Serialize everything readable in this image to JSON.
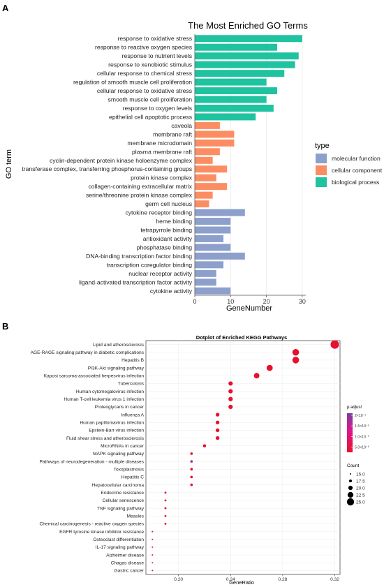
{
  "panel_labels": {
    "a": "A",
    "b": "B"
  },
  "chart_data": [
    {
      "type": "bar",
      "orientation": "horizontal",
      "title": "The Most Enriched GO Terms",
      "xlabel": "GeneNumber",
      "ylabel": "GO term",
      "xlim": [
        0,
        31
      ],
      "xticks": [
        0,
        10,
        20,
        30
      ],
      "legend_title": "type",
      "legend_position": "right",
      "grid": true,
      "series": [
        {
          "name": "molecular function",
          "color": "#8DA0CB",
          "categories": [
            "cytokine receptor binding",
            "heme binding",
            "tetrapyrrole binding",
            "antioxidant activity",
            "phosphatase binding",
            "DNA-binding transcription factor binding",
            "transcription coregulator binding",
            "nuclear receptor activity",
            "ligand-activated transcription factor activity",
            "cytokine activity"
          ],
          "values": [
            14,
            10,
            10,
            8,
            10,
            14,
            8,
            6,
            6,
            10
          ]
        },
        {
          "name": "cellular component",
          "color": "#FC8D62",
          "categories": [
            "caveola",
            "membrane raft",
            "membrane microdomain",
            "plasma membrane raft",
            "cyclin-dependent protein kinase holoenzyme complex",
            "transferase complex, transferring phosphorus-containing groups",
            "protein kinase complex",
            "collagen-containing extracellular matrix",
            "serine/threonine protein kinase complex",
            "germ cell nucleus"
          ],
          "values": [
            7,
            11,
            11,
            7,
            5,
            9,
            6,
            9,
            5,
            4
          ]
        },
        {
          "name": "biological process",
          "color": "#1FC3A0",
          "categories": [
            "response to oxidative stress",
            "response to reactive oxygen species",
            "response to nutrient levels",
            "response to xenobiotic stimulus",
            "cellular response to chemical stress",
            "regulation of smooth muscle cell proliferation",
            "cellular response to oxidative stress",
            "smooth muscle cell proliferation",
            "response to oxygen levels",
            "epithelial cell apoptotic process"
          ],
          "values": [
            30,
            23,
            29,
            28,
            25,
            20,
            23,
            20,
            22,
            17
          ]
        }
      ],
      "display_order": [
        "response to oxidative stress",
        "response to reactive oxygen species",
        "response to nutrient levels",
        "response to xenobiotic stimulus",
        "cellular response to chemical stress",
        "regulation of smooth muscle cell proliferation",
        "cellular response to oxidative stress",
        "smooth muscle cell proliferation",
        "response to oxygen levels",
        "epithelial cell apoptotic process",
        "caveola",
        "membrane raft",
        "membrane microdomain",
        "plasma membrane raft",
        "cyclin-dependent protein kinase holoenzyme complex",
        "transferase complex, transferring phosphorus-containing groups",
        "protein kinase complex",
        "collagen-containing extracellular matrix",
        "serine/threonine protein kinase complex",
        "germ cell nucleus",
        "cytokine receptor binding",
        "heme binding",
        "tetrapyrrole binding",
        "antioxidant activity",
        "phosphatase binding",
        "DNA-binding transcription factor binding",
        "transcription coregulator binding",
        "nuclear receptor activity",
        "ligand-activated transcription factor activity",
        "cytokine activity"
      ],
      "legend_order": [
        "molecular function",
        "cellular component",
        "biological process"
      ]
    },
    {
      "type": "scatter",
      "title": "Dotplot of Enriched KEGG Pathways",
      "xlabel": "GeneRatio",
      "ylabel": "",
      "xlim": [
        0.175,
        0.324
      ],
      "xticks": [
        0.2,
        0.24,
        0.28,
        0.32
      ],
      "xtick_labels": [
        "0.20",
        "0.24",
        "0.28",
        "0.32"
      ],
      "grid": true,
      "legend_position": "right",
      "color_legend": {
        "title": "p.adjust",
        "ticks": [
          2e-05,
          1.5e-05,
          1e-05,
          5e-06
        ],
        "tick_labels": [
          "2×10⁻⁵",
          "1.5×10⁻⁵",
          "1.0×10⁻⁵",
          "5.0×10⁻⁶"
        ],
        "low_color": "#E8112D",
        "high_color": "#7B3FA0"
      },
      "size_legend": {
        "title": "Count",
        "values": [
          15.0,
          17.5,
          20.0,
          22.5,
          25.0
        ],
        "labels": [
          "15.0",
          "17.5",
          "20.0",
          "22.5",
          "25.0"
        ]
      },
      "points": [
        {
          "pathway": "Lipid and atherosclerosis",
          "gene_ratio": 0.32,
          "count": 27,
          "color": "#E8112D"
        },
        {
          "pathway": "AGE-RAGE signaling pathway in diabetic complications",
          "gene_ratio": 0.29,
          "count": 24,
          "color": "#E8112D"
        },
        {
          "pathway": "Hepatitis B",
          "gene_ratio": 0.29,
          "count": 24,
          "color": "#E8112D"
        },
        {
          "pathway": "PI3K-Akt signaling pathway",
          "gene_ratio": 0.27,
          "count": 23,
          "color": "#E8112D"
        },
        {
          "pathway": "Kaposi sarcoma-associated herpesvirus infection",
          "gene_ratio": 0.26,
          "count": 22,
          "color": "#E8112D"
        },
        {
          "pathway": "Tuberculosis",
          "gene_ratio": 0.24,
          "count": 20,
          "color": "#E8112D"
        },
        {
          "pathway": "Human cytomegalovirus infection",
          "gene_ratio": 0.24,
          "count": 20,
          "color": "#E8112D"
        },
        {
          "pathway": "Human T-cell leukemia virus 1 infection",
          "gene_ratio": 0.24,
          "count": 20,
          "color": "#E8112D"
        },
        {
          "pathway": "Proteoglycans in cancer",
          "gene_ratio": 0.24,
          "count": 20,
          "color": "#E8112D"
        },
        {
          "pathway": "Influenza A",
          "gene_ratio": 0.23,
          "count": 19,
          "color": "#E8112D"
        },
        {
          "pathway": "Human papillomavirus infection",
          "gene_ratio": 0.23,
          "count": 19,
          "color": "#E8112D"
        },
        {
          "pathway": "Epstein-Barr virus infection",
          "gene_ratio": 0.23,
          "count": 19,
          "color": "#E8112D"
        },
        {
          "pathway": "Fluid shear stress and atherosclerosis",
          "gene_ratio": 0.23,
          "count": 19,
          "color": "#E8112D"
        },
        {
          "pathway": "MicroRNAs in cancer",
          "gene_ratio": 0.22,
          "count": 18,
          "color": "#E8112D"
        },
        {
          "pathway": "MAPK signaling pathway",
          "gene_ratio": 0.21,
          "count": 17,
          "color": "#E8112D"
        },
        {
          "pathway": "Pathways of neurodegeneration - multiple diseases",
          "gene_ratio": 0.21,
          "count": 17,
          "color": "#9B3AA8"
        },
        {
          "pathway": "Toxoplasmosis",
          "gene_ratio": 0.21,
          "count": 17,
          "color": "#E8112D"
        },
        {
          "pathway": "Hepatitis C",
          "gene_ratio": 0.21,
          "count": 17,
          "color": "#E8112D"
        },
        {
          "pathway": "Hepatocellular carcinoma",
          "gene_ratio": 0.21,
          "count": 17,
          "color": "#E8112D"
        },
        {
          "pathway": "Endocrine resistance",
          "gene_ratio": 0.19,
          "count": 16,
          "color": "#E8112D"
        },
        {
          "pathway": "Cellular senescence",
          "gene_ratio": 0.19,
          "count": 16,
          "color": "#E8112D"
        },
        {
          "pathway": "TNF signaling pathway",
          "gene_ratio": 0.19,
          "count": 16,
          "color": "#E8112D"
        },
        {
          "pathway": "Measles",
          "gene_ratio": 0.19,
          "count": 16,
          "color": "#E8112D"
        },
        {
          "pathway": "Chemical carcinogenesis - reactive oxygen species",
          "gene_ratio": 0.19,
          "count": 16,
          "color": "#E8112D"
        },
        {
          "pathway": "EGFR tyrosine kinase inhibitor resistance",
          "gene_ratio": 0.18,
          "count": 15,
          "color": "#E8112D"
        },
        {
          "pathway": "Osteoclast differentiation",
          "gene_ratio": 0.18,
          "count": 15,
          "color": "#E8112D"
        },
        {
          "pathway": "IL-17 signaling pathway",
          "gene_ratio": 0.18,
          "count": 15,
          "color": "#E8112D"
        },
        {
          "pathway": "Alzheimer disease",
          "gene_ratio": 0.18,
          "count": 15,
          "color": "#E8112D"
        },
        {
          "pathway": "Chagas disease",
          "gene_ratio": 0.18,
          "count": 15,
          "color": "#E8112D"
        },
        {
          "pathway": "Gastric cancer",
          "gene_ratio": 0.18,
          "count": 15,
          "color": "#E8112D"
        }
      ]
    }
  ]
}
